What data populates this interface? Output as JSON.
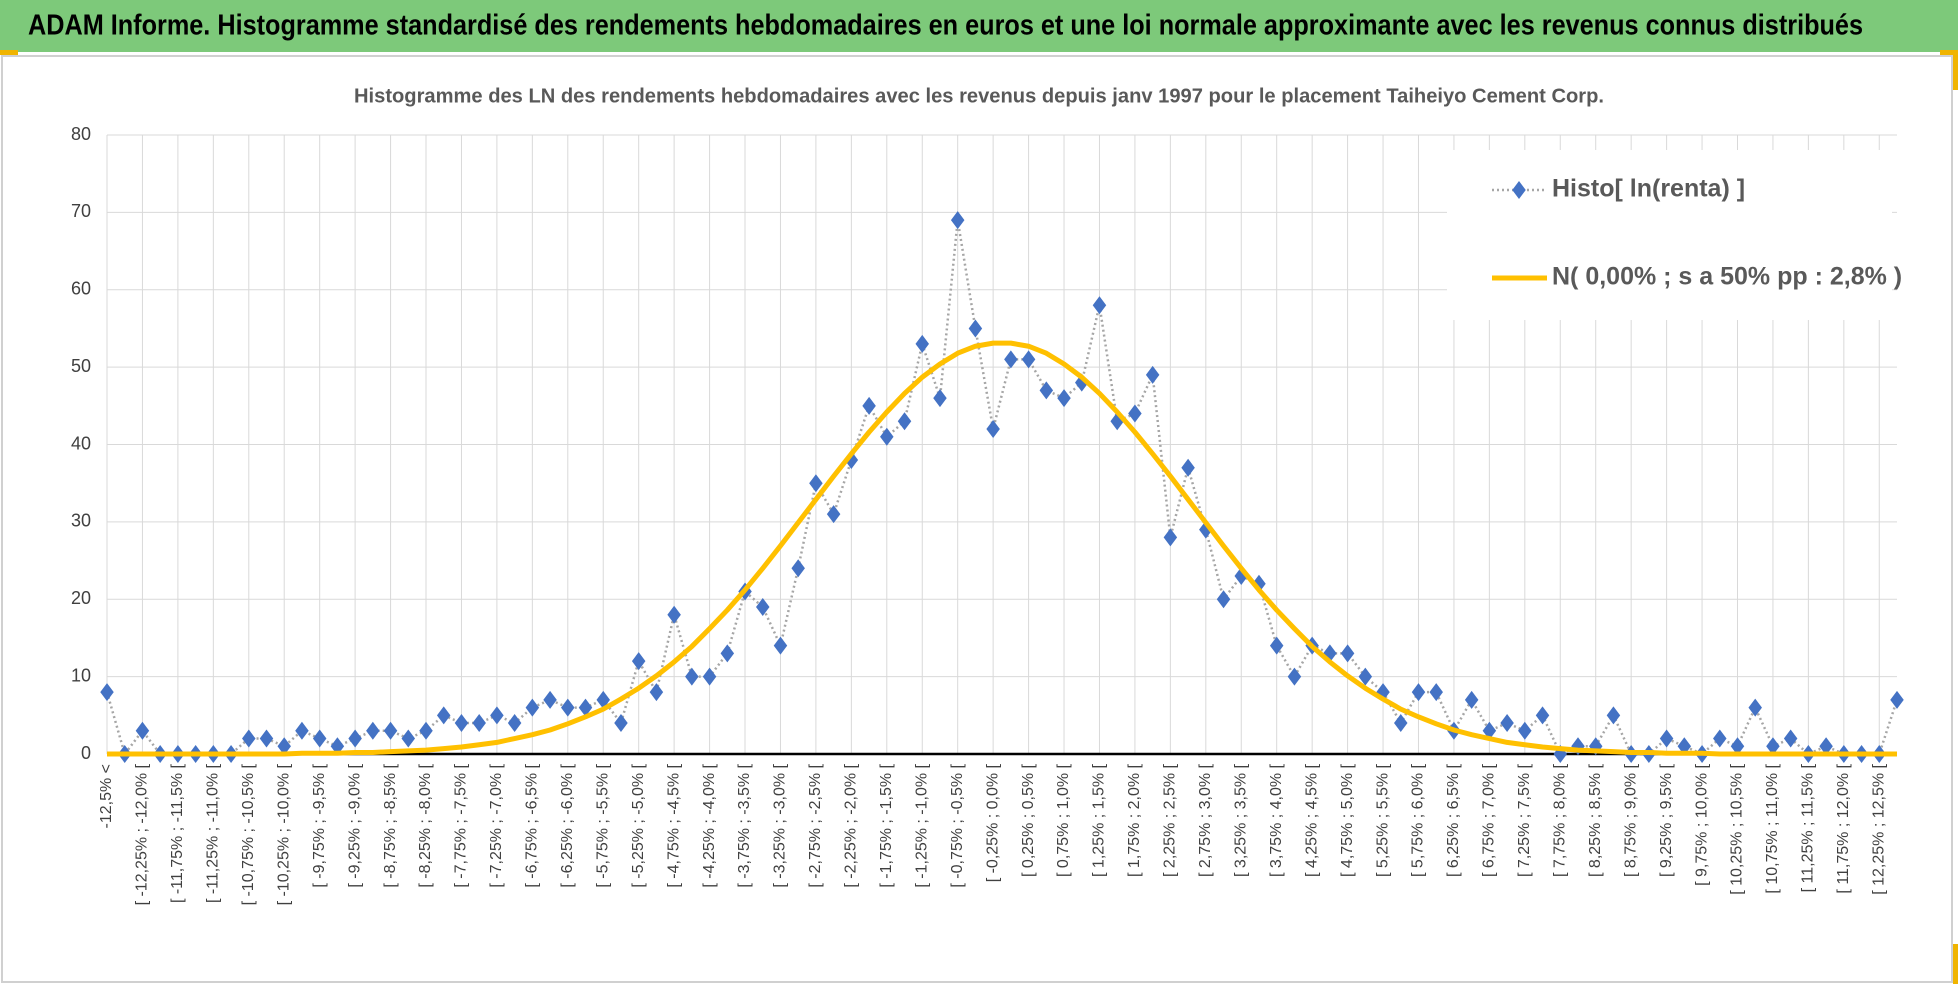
{
  "chart_data": {
    "type": "line",
    "title": "ADAM Informe. Histogramme standardisé des rendements hebdomadaires en euros et une loi normale approximante avec les revenus connus distribués",
    "subtitle": "Histogramme des LN des rendements hebdomadaires avec les revenus depuis janv 1997 pour le placement Taiheiyo Cement Corp.",
    "categories": [
      "-12,5% <",
      null,
      "[ -12,25% ; -12,0% [",
      null,
      "[ -11,75% ; -11,5% [",
      null,
      "[ -11,25% ; -11,0% [",
      null,
      "[ -10,75% ; -10,5% [",
      null,
      "[ -10,25% ; -10,0% [",
      null,
      "[ -9,75% ; -9,5% [",
      null,
      "[ -9,25% ; -9,0% [",
      null,
      "[ -8,75% ; -8,5% [",
      null,
      "[ -8,25% ; -8,0% [",
      null,
      "[ -7,75% ; -7,5% [",
      null,
      "[ -7,25% ; -7,0% [",
      null,
      "[ -6,75% ; -6,5% [",
      null,
      "[ -6,25% ; -6,0% [",
      null,
      "[ -5,75% ; -5,5% [",
      null,
      "[ -5,25% ; -5,0% [",
      null,
      "[ -4,75% ; -4,5% [",
      null,
      "[ -4,25% ; -4,0% [",
      null,
      "[ -3,75% ; -3,5% [",
      null,
      "[ -3,25% ; -3,0% [",
      null,
      "[ -2,75% ; -2,5% [",
      null,
      "[ -2,25% ; -2,0% [",
      null,
      "[ -1,75% ; -1,5% [",
      null,
      "[ -1,25% ; -1,0% [",
      null,
      "[ -0,75% ; -0,5% [",
      null,
      "[ -0,25% ; 0,0% [",
      null,
      "[ 0,25% ; 0,5% [",
      null,
      "[ 0,75% ; 1,0% [",
      null,
      "[ 1,25% ; 1,5% [",
      null,
      "[ 1,75% ; 2,0% [",
      null,
      "[ 2,25% ; 2,5% [",
      null,
      "[ 2,75% ; 3,0% [",
      null,
      "[ 3,25% ; 3,5% [",
      null,
      "[ 3,75% ; 4,0% [",
      null,
      "[ 4,25% ; 4,5% [",
      null,
      "[ 4,75% ; 5,0% [",
      null,
      "[ 5,25% ; 5,5% [",
      null,
      "[ 5,75% ; 6,0% [",
      null,
      "[ 6,25% ; 6,5% [",
      null,
      "[ 6,75% ; 7,0% [",
      null,
      "[ 7,25% ; 7,5% [",
      null,
      "[ 7,75% ; 8,0% [",
      null,
      "[ 8,25% ; 8,5% [",
      null,
      "[ 8,75% ; 9,0% [",
      null,
      "[ 9,25% ; 9,5% [",
      null,
      "[ 9,75% ; 10,0% [",
      null,
      "[ 10,25% ; 10,5% [",
      null,
      "[ 10,75% ; 11,0% [",
      null,
      "[ 11,25% ; 11,5% [",
      null,
      "[ 11,75% ; 12,0% [",
      null,
      "[ 12,25% ; 12,5% [",
      null
    ],
    "series": [
      {
        "name": "Histo[ ln(renta) ]",
        "color": "#4472c4",
        "line_color": "#a6a6a6",
        "line_style": "dotted",
        "marker": "diamond",
        "values": [
          8,
          0,
          3,
          0,
          0,
          0,
          0,
          0,
          2,
          2,
          1,
          3,
          2,
          1,
          2,
          3,
          3,
          2,
          3,
          5,
          4,
          4,
          5,
          4,
          6,
          7,
          6,
          6,
          7,
          4,
          12,
          8,
          18,
          10,
          10,
          13,
          21,
          19,
          14,
          24,
          35,
          31,
          38,
          45,
          41,
          43,
          53,
          46,
          69,
          55,
          42,
          51,
          51,
          47,
          46,
          48,
          58,
          43,
          44,
          49,
          28,
          37,
          29,
          20,
          23,
          22,
          14,
          10,
          14,
          13,
          13,
          10,
          8,
          4,
          8,
          8,
          3,
          7,
          3,
          4,
          3,
          5,
          0,
          1,
          1,
          5,
          0,
          0,
          2,
          1,
          0,
          2,
          1,
          6,
          1,
          2,
          0,
          1,
          0,
          0,
          0,
          7
        ]
      },
      {
        "name": "N( 0,00% ; s a 50% pp : 2,8% )",
        "color": "#ffc000",
        "line_style": "solid",
        "values": [
          0,
          0,
          0,
          0,
          0,
          0,
          0,
          0,
          0,
          0,
          0,
          0.1,
          0.1,
          0.1,
          0.2,
          0.2,
          0.3,
          0.4,
          0.5,
          0.7,
          0.9,
          1.2,
          1.5,
          2.0,
          2.5,
          3.1,
          3.9,
          4.8,
          5.8,
          7.1,
          8.5,
          10.1,
          11.9,
          13.9,
          16.2,
          18.6,
          21.2,
          24.0,
          26.9,
          29.9,
          32.9,
          35.9,
          38.8,
          41.6,
          44.2,
          46.6,
          48.7,
          50.4,
          51.8,
          52.7,
          53.1,
          53.1,
          52.7,
          51.8,
          50.4,
          48.7,
          46.6,
          44.2,
          41.6,
          38.8,
          35.9,
          32.9,
          29.9,
          26.9,
          24.0,
          21.2,
          18.6,
          16.2,
          13.9,
          11.9,
          10.1,
          8.5,
          7.1,
          5.8,
          4.8,
          3.9,
          3.1,
          2.5,
          2.0,
          1.5,
          1.2,
          0.9,
          0.7,
          0.5,
          0.4,
          0.3,
          0.2,
          0.2,
          0.1,
          0.1,
          0.1,
          0,
          0,
          0,
          0,
          0,
          0,
          0,
          0,
          0,
          0,
          0
        ]
      }
    ],
    "ylim": [
      0,
      80
    ],
    "yticks": [
      0,
      10,
      20,
      30,
      40,
      50,
      60,
      70,
      80
    ],
    "grid": true,
    "legend": "upper right"
  }
}
